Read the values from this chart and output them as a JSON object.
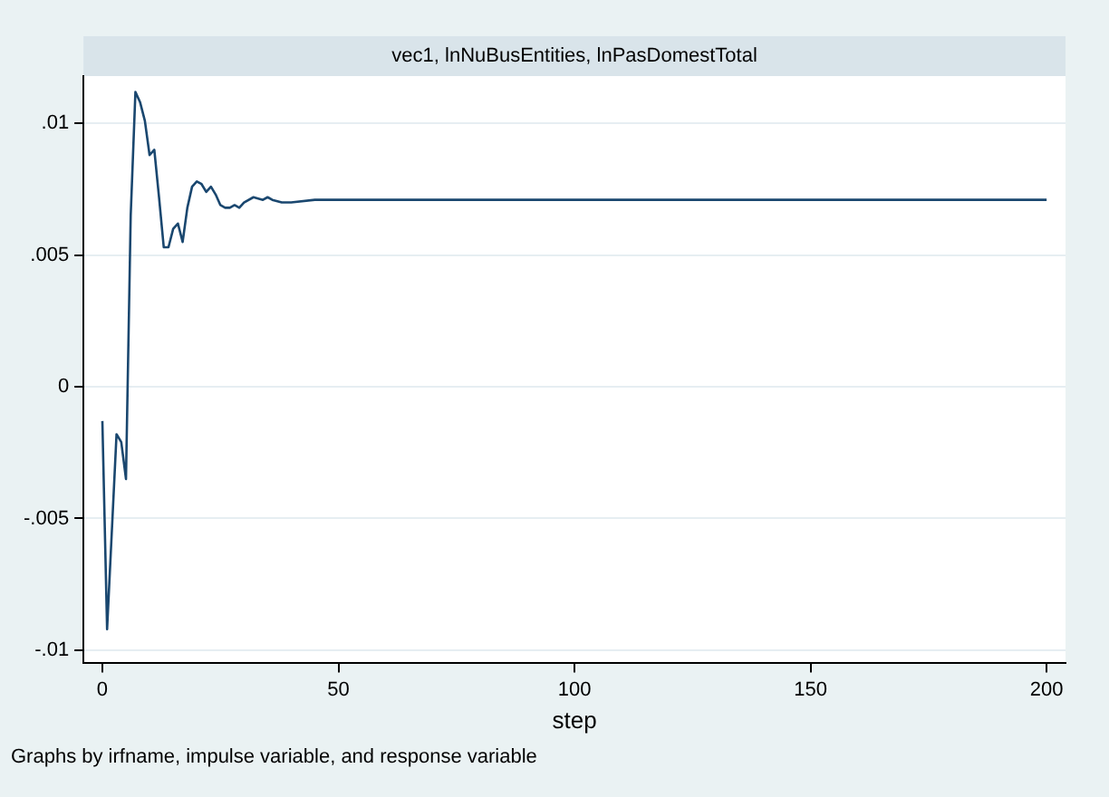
{
  "chart_data": {
    "type": "line",
    "title": "vec1, lnNuBusEntities, lnPasDomestTotal",
    "xlabel": "step",
    "annotations": [
      "Graphs by irfname, impulse variable, and response variable"
    ],
    "x": [
      0,
      1,
      2,
      3,
      4,
      5,
      6,
      7,
      8,
      9,
      10,
      11,
      12,
      13,
      14,
      15,
      16,
      17,
      18,
      19,
      20,
      21,
      22,
      23,
      24,
      25,
      26,
      27,
      28,
      29,
      30,
      32,
      34,
      35,
      36,
      38,
      40,
      45,
      50,
      55,
      60,
      100,
      150,
      200
    ],
    "series": [
      {
        "color": "#1a476f",
        "values": [
          -0.0013,
          -0.0092,
          -0.0055,
          -0.0018,
          -0.0021,
          -0.0035,
          0.0065,
          0.0112,
          0.0108,
          0.0101,
          0.0088,
          0.009,
          0.0072,
          0.0053,
          0.0053,
          0.006,
          0.0062,
          0.0055,
          0.0068,
          0.0076,
          0.0078,
          0.0077,
          0.0074,
          0.0076,
          0.0073,
          0.0069,
          0.0068,
          0.0068,
          0.0069,
          0.0068,
          0.007,
          0.0072,
          0.0071,
          0.0072,
          0.0071,
          0.007,
          0.007,
          0.0071,
          0.0071,
          0.0071,
          0.0071,
          0.0071,
          0.0071,
          0.0071
        ]
      }
    ],
    "xlim": [
      -4,
      204
    ],
    "xticks": [
      0,
      50,
      100,
      150,
      200
    ],
    "ylim": [
      -0.0105,
      0.0118
    ],
    "yticks": [
      {
        "value": -0.01,
        "label": "-.01"
      },
      {
        "value": -0.005,
        "label": "-.005"
      },
      {
        "value": 0,
        "label": "0"
      },
      {
        "value": 0.005,
        "label": ".005"
      },
      {
        "value": 0.01,
        "label": ".01"
      }
    ],
    "grid": "y",
    "legend": false,
    "marker": "none",
    "line_style": "solid"
  }
}
